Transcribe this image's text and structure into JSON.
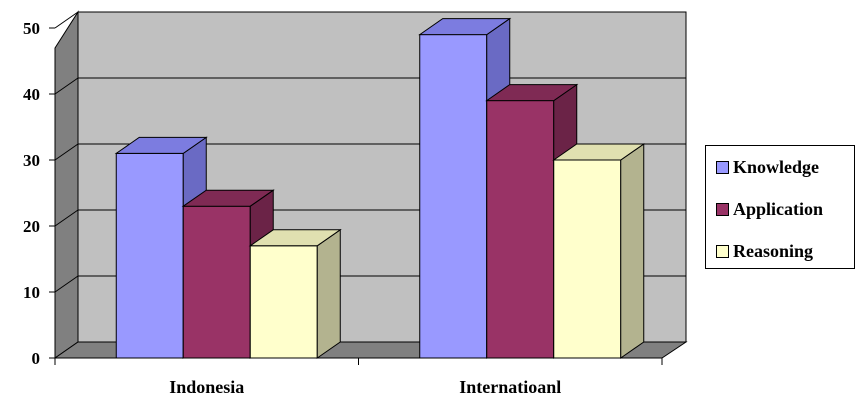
{
  "chart_data": {
    "type": "bar",
    "categories": [
      "Indonesia",
      "Internatioanl"
    ],
    "series": [
      {
        "name": "Knowledge",
        "values": [
          31,
          49
        ],
        "color": "#9999FF",
        "side": "#6A6AC4",
        "top": "#7C7CE0"
      },
      {
        "name": "Application",
        "values": [
          23,
          39
        ],
        "color": "#993366",
        "side": "#6B2347",
        "top": "#7F2A54"
      },
      {
        "name": "Reasoning",
        "values": [
          17,
          30
        ],
        "color": "#FFFFCC",
        "side": "#B3B38F",
        "top": "#E0E0B0"
      }
    ],
    "ylim": [
      0,
      50
    ],
    "yticks": [
      0,
      10,
      20,
      30,
      40,
      50
    ],
    "grid": true,
    "legend": "right",
    "wall_color": "#C0C0C0",
    "floor_color": "#808080"
  }
}
